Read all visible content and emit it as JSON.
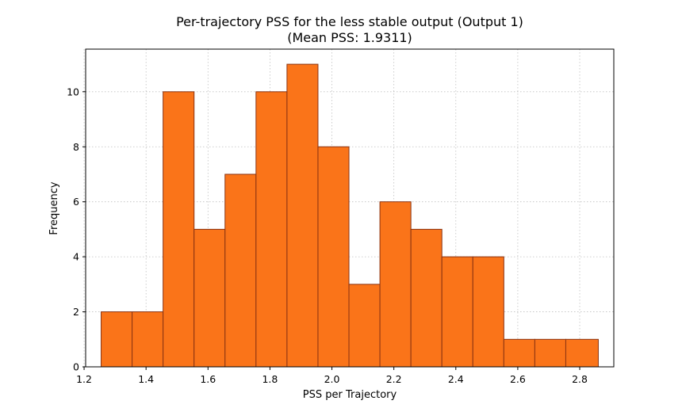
{
  "chart_data": {
    "type": "bar",
    "title": "Per-trajectory PSS for the less stable output (Output 1)",
    "subtitle": "(Mean PSS: 1.9311)",
    "xlabel": "PSS per Trajectory",
    "ylabel": "Frequency",
    "bin_edges": [
      1.255,
      1.355,
      1.455,
      1.555,
      1.655,
      1.755,
      1.855,
      1.955,
      2.055,
      2.155,
      2.255,
      2.355,
      2.455,
      2.555,
      2.655,
      2.755,
      2.86
    ],
    "values": [
      2,
      2,
      10,
      5,
      7,
      10,
      11,
      8,
      3,
      6,
      5,
      4,
      4,
      1,
      1,
      1
    ],
    "xlim": [
      1.205,
      2.91
    ],
    "ylim": [
      0,
      11.55
    ],
    "xticks": [
      "1.2",
      "1.4",
      "1.6",
      "1.8",
      "2.0",
      "2.2",
      "2.4",
      "2.6",
      "2.8"
    ],
    "yticks": [
      "0",
      "2",
      "4",
      "6",
      "8",
      "10"
    ],
    "grid": true,
    "colors": {
      "bar_fill": "#fa7419",
      "bar_edge": "#8a3312"
    }
  }
}
